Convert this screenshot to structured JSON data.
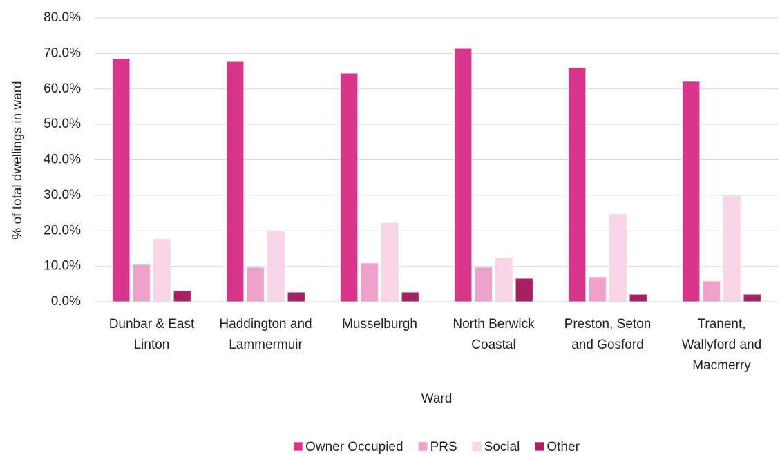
{
  "chart_data": {
    "type": "bar",
    "xlabel": "Ward",
    "ylabel": "% of total dwellings in ward",
    "categories": [
      "Dunbar & East Linton",
      "Haddington and Lammermuir",
      "Musselburgh",
      "North Berwick Coastal",
      "Preston, Seton and Gosford",
      "Tranent, Wallyford and Macmerry"
    ],
    "series": [
      {
        "name": "Owner Occupied",
        "color": "#d9358a",
        "values": [
          68.5,
          67.7,
          64.4,
          71.4,
          66.0,
          62.1
        ]
      },
      {
        "name": "PRS",
        "color": "#eea2c9",
        "values": [
          10.5,
          9.7,
          10.9,
          9.7,
          7.0,
          5.8
        ]
      },
      {
        "name": "Social",
        "color": "#f8d6e7",
        "values": [
          17.7,
          19.8,
          22.2,
          12.3,
          24.7,
          29.8
        ]
      },
      {
        "name": "Other",
        "color": "#a81f63",
        "values": [
          3.1,
          2.7,
          2.7,
          6.6,
          2.1,
          2.1
        ]
      }
    ],
    "ylim": [
      0,
      80
    ],
    "yticks": [
      {
        "value": 0,
        "label": "0.0%"
      },
      {
        "value": 10,
        "label": "10.0%"
      },
      {
        "value": 20,
        "label": "20.0%"
      },
      {
        "value": 30,
        "label": "30.0%"
      },
      {
        "value": 40,
        "label": "40.0%"
      },
      {
        "value": 50,
        "label": "50.0%"
      },
      {
        "value": 60,
        "label": "60.0%"
      },
      {
        "value": 70,
        "label": "70.0%"
      },
      {
        "value": 80,
        "label": "80.0%"
      }
    ],
    "grid": true,
    "legend": "bottom"
  }
}
